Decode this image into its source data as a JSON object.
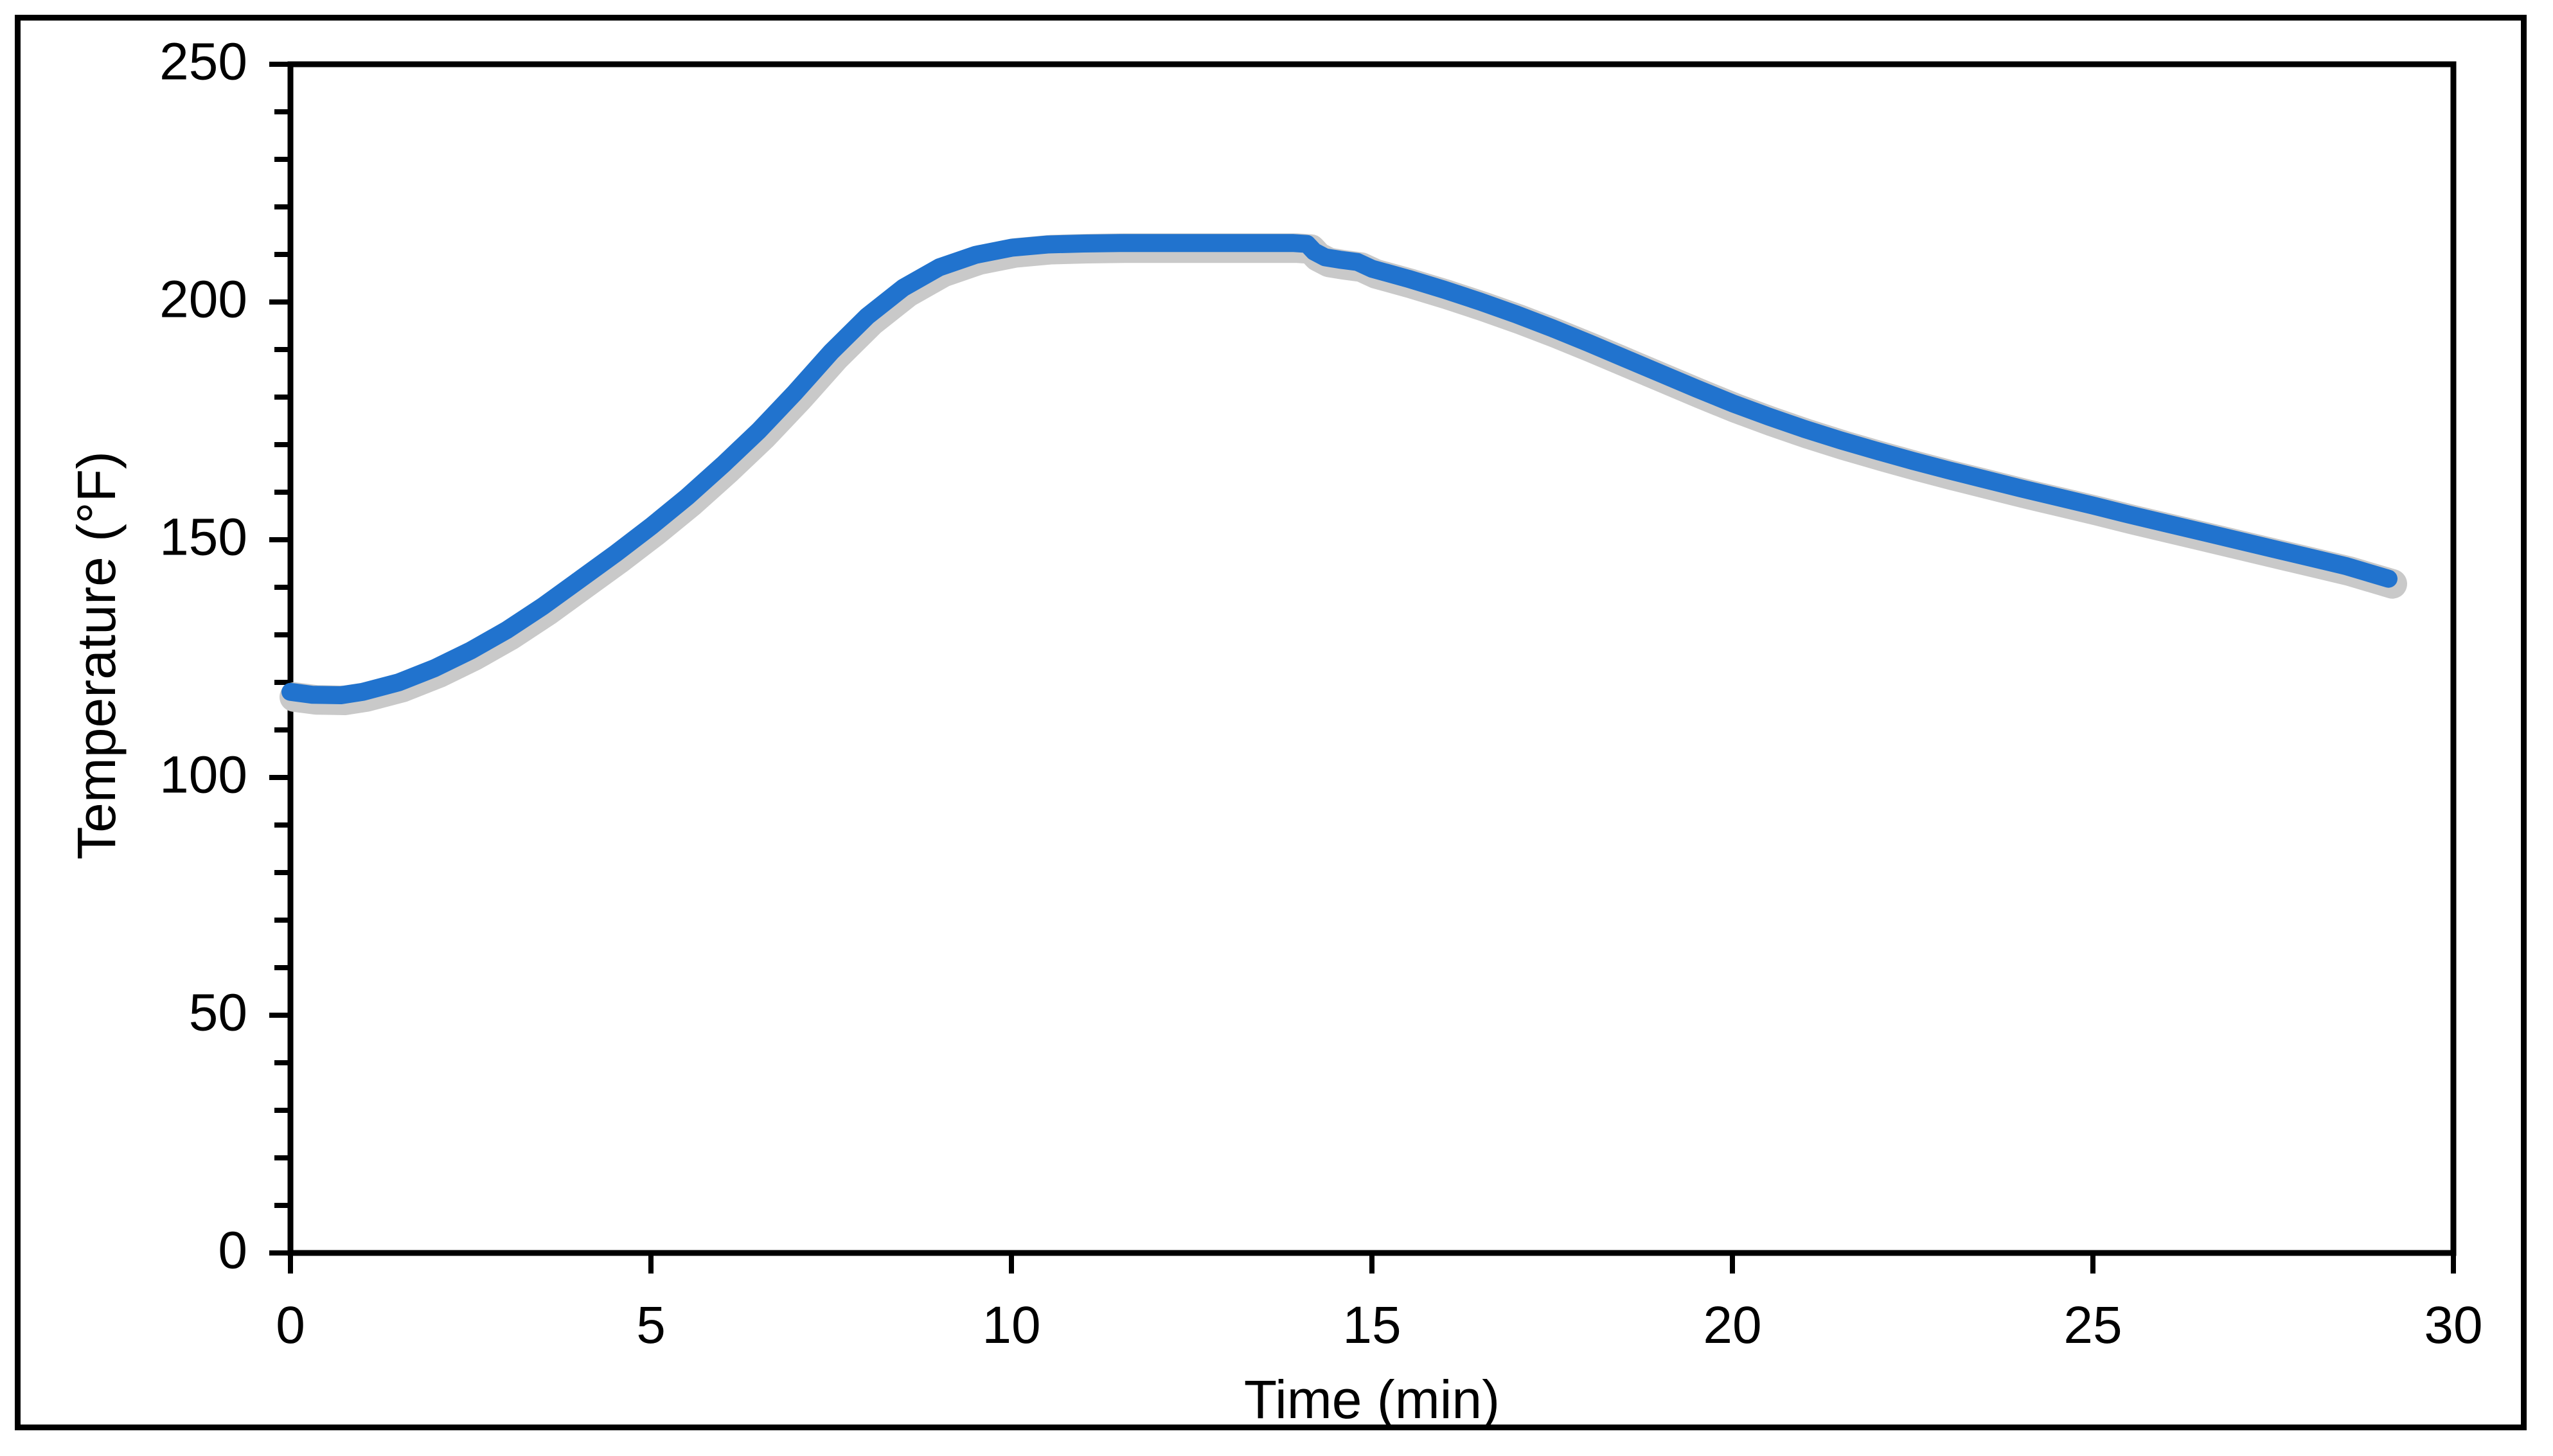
{
  "chart_data": {
    "type": "line",
    "title": "",
    "xlabel": "Time (min)",
    "ylabel": "Temperature (°F)",
    "xlim": [
      0,
      30
    ],
    "ylim": [
      0,
      250
    ],
    "x_ticks": [
      0,
      5,
      10,
      15,
      20,
      25,
      30
    ],
    "y_ticks": [
      0,
      50,
      100,
      150,
      200,
      250
    ],
    "y_minor_tick_step": 10,
    "grid": false,
    "legend": "none",
    "plot_border": true,
    "colors": {
      "line": "#2173CE",
      "shadow": "#C9C9C9",
      "axis": "#000000",
      "background": "#FFFFFF"
    },
    "series": [
      {
        "name": "Temperature",
        "x": [
          0,
          0.3,
          0.7,
          1,
          1.5,
          2,
          2.5,
          3,
          3.5,
          4,
          4.5,
          5,
          5.5,
          6,
          6.5,
          7,
          7.5,
          8,
          8.5,
          9,
          9.5,
          10,
          10.5,
          11,
          11.5,
          12,
          12.5,
          13,
          13.5,
          13.9,
          14.1,
          14.2,
          14.35,
          14.55,
          14.8,
          15,
          15.5,
          16,
          16.5,
          17,
          17.5,
          18,
          18.5,
          19,
          19.5,
          20,
          20.5,
          21,
          21.5,
          22,
          22.5,
          23,
          23.5,
          24,
          24.5,
          25,
          25.5,
          26,
          26.5,
          27,
          27.5,
          28,
          28.5,
          29.1
        ],
        "y": [
          118,
          117.4,
          117.3,
          118,
          120,
          123,
          126.7,
          131,
          136,
          141.5,
          147,
          152.8,
          159,
          165.8,
          173,
          181,
          189.5,
          197,
          203,
          207.3,
          209.9,
          211.4,
          212.1,
          212.3,
          212.4,
          212.4,
          212.4,
          212.4,
          212.4,
          212.4,
          212.2,
          210.6,
          209.4,
          208.9,
          208.4,
          207,
          204.9,
          202.6,
          200.1,
          197.4,
          194.5,
          191.4,
          188.2,
          185,
          181.8,
          178.7,
          175.9,
          173.3,
          170.9,
          168.7,
          166.6,
          164.6,
          162.7,
          160.8,
          159,
          157.2,
          155.3,
          153.5,
          151.7,
          149.9,
          148.1,
          146.3,
          144.5,
          141.8
        ]
      }
    ],
    "annotations": {
      "plateau_value_f": 212,
      "start_value_f": 118,
      "end_value_f": 141.8,
      "notch_time_min": 14.2
    }
  },
  "axes": {
    "x_title": "Time (min)",
    "y_title": "Temperature (°F)"
  }
}
